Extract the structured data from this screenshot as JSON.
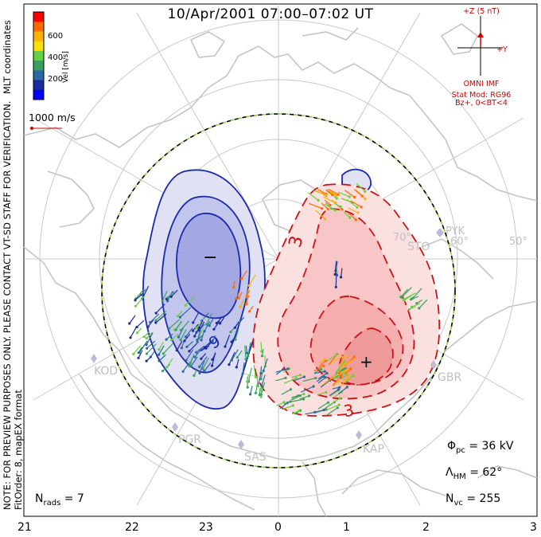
{
  "title": "10/Apr/2001 07:00–07:02 UT",
  "notes": {
    "preview": "NOTE: FOR PREVIEW PURPOSES ONLY. PLEASE CONTACT VT-SD STAFF FOR VERIFICATION.",
    "fit": "FitOrder: 8, mapEX format",
    "coordinates": "MLT coordinates"
  },
  "colorbar": {
    "label": "Vel [m/s]",
    "ticks": [
      "600",
      "400",
      "200"
    ],
    "colors": [
      "#ff0000",
      "#ff6a00",
      "#ffb000",
      "#ffe000",
      "#66d040",
      "#3aa060",
      "#2a6aa0",
      "#1a2aa0",
      "#0000ff"
    ]
  },
  "scale_vector": {
    "label": "1000 m/s",
    "color": "#d00000"
  },
  "imf": {
    "z_label": "+Z (5 nT)",
    "y_label": "+Y",
    "source": "OMNI IMF",
    "model": "Stat Mod: RG96",
    "condition": "Bz+, 0<BT<4",
    "color": "#d00000"
  },
  "contour_labels": {
    "negative": "−9",
    "positive": "3",
    "positive2": "3",
    "min_marker": "−",
    "max_marker": "+"
  },
  "stats": {
    "phi_symbol": "Φ",
    "phi_sub": "pc",
    "phi_value": "= 36 kV",
    "lambda_symbol": "Λ",
    "lambda_sub": "HM",
    "lambda_value": "= 62°",
    "nvc_symbol": "N",
    "nvc_sub": "vc",
    "nvc_value": "= 255",
    "nrads_symbol": "N",
    "nrads_sub": "rads",
    "nrads_value": "= 7"
  },
  "mlt_labels": [
    "21",
    "22",
    "23",
    "0",
    "1",
    "2",
    "3"
  ],
  "lat_labels": [
    "70°",
    "60°",
    "50°"
  ],
  "sites": [
    "KOD",
    "PGR",
    "SAS",
    "KAP",
    "GBR",
    "STO",
    "PYK"
  ],
  "colors": {
    "negative_fill": "#9a9ee0",
    "positive_fill": "#f4a0a0",
    "negative_line": "#1a2ab0",
    "positive_line": "#d01010",
    "grid": "#bfbfbf",
    "hmb_dash": "#90d040"
  }
}
